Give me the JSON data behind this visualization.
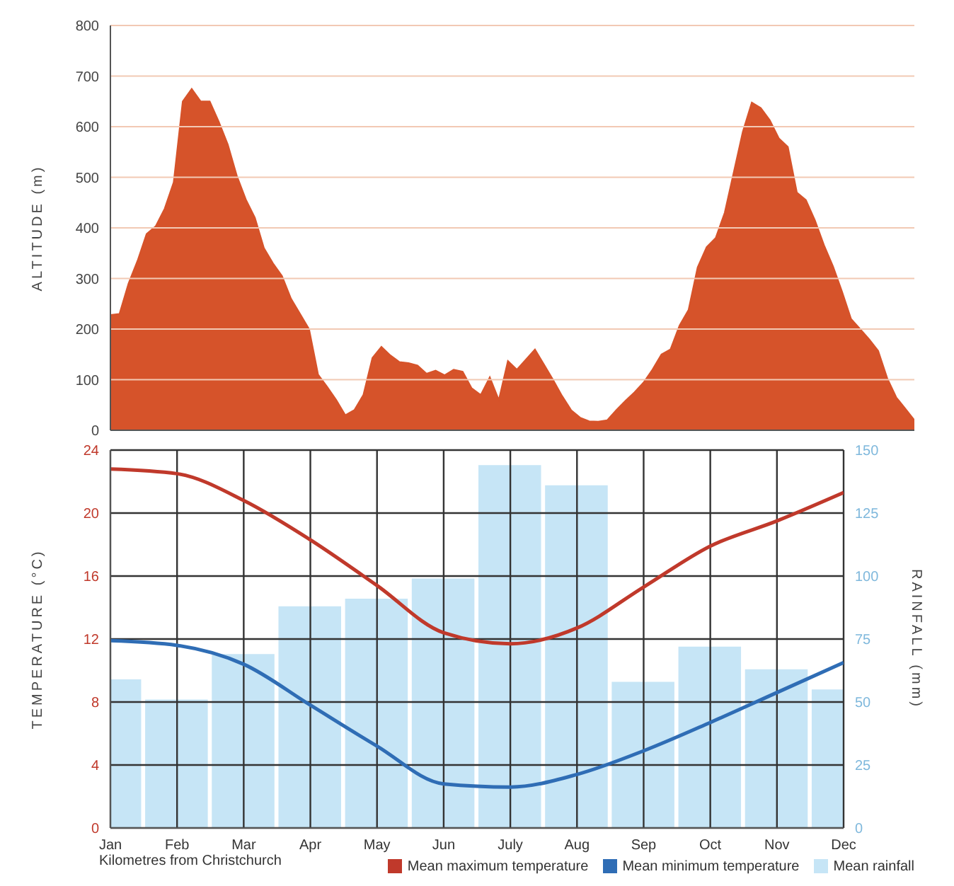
{
  "chart_data": [
    {
      "type": "area",
      "ylabel": "ALTITUDE (m)",
      "categories": [
        null,
        null,
        null,
        null,
        null,
        null,
        null,
        null,
        null,
        null,
        null,
        null,
        null,
        null,
        null,
        null,
        null,
        null,
        null,
        null,
        null,
        null,
        null,
        null,
        null,
        null,
        null,
        null,
        null,
        null,
        null,
        null,
        null,
        null,
        null,
        null,
        null,
        null,
        null,
        null,
        null,
        null,
        null,
        null,
        null,
        null,
        null,
        null,
        null,
        null,
        null,
        null,
        null,
        null,
        null,
        null,
        null,
        null,
        null,
        null,
        null,
        null,
        null,
        null,
        null,
        null,
        null,
        null,
        null,
        null,
        null,
        null,
        null,
        null,
        null,
        null,
        null,
        null,
        null,
        null,
        null,
        null,
        null,
        null,
        null,
        null,
        null,
        null,
        null,
        null
      ],
      "series": [
        {
          "color": "#d6532a",
          "values": [
            228,
            230,
            290,
            335,
            388,
            403,
            438,
            490,
            650,
            675,
            650,
            650,
            610,
            565,
            503,
            456,
            420,
            360,
            330,
            305,
            260,
            230,
            200,
            110,
            86,
            60,
            30,
            40,
            70,
            143,
            165,
            148,
            135,
            133,
            128,
            112,
            118,
            109,
            120,
            116,
            83,
            70,
            105,
            60,
            137,
            120,
            140,
            160,
            130,
            100,
            68,
            40,
            25,
            18,
            17,
            20,
            40,
            58,
            75,
            94,
            120,
            150,
            160,
            207,
            238,
            322,
            362,
            380,
            430,
            510,
            590,
            648,
            637,
            613,
            577,
            560,
            470,
            455,
            415,
            366,
            324,
            274,
            220,
            200,
            180,
            157,
            103,
            65,
            43,
            20
          ]
        }
      ],
      "ylim": [
        0,
        800
      ],
      "yticks": [
        0,
        100,
        200,
        300,
        400,
        500,
        600,
        700,
        800
      ],
      "grid": "y",
      "tick_labels": "y"
    },
    {
      "type": "line",
      "ylabel": "TEMPERATURE (°C)",
      "y2label": "RAINFALL (mm)",
      "categories": [
        "Jan",
        "Feb",
        "Mar",
        "Apr",
        "May",
        "Jun",
        "July",
        "Aug",
        "Sep",
        "Oct",
        "Nov",
        "Dec"
      ],
      "series": [
        {
          "name": "Mean rainfall",
          "type": "bar",
          "axis": "y2",
          "color": "#c6e5f6",
          "values": [
            59,
            51,
            69,
            88,
            91,
            99,
            144,
            136,
            58,
            72,
            63,
            55
          ]
        },
        {
          "name": "Mean maximum temperature",
          "color": "#c0392b",
          "values": [
            22.8,
            22.5,
            20.8,
            18.3,
            15.4,
            12.4,
            11.7,
            12.7,
            15.3,
            17.9,
            19.5,
            21.3
          ]
        },
        {
          "name": "Mean minimum temperature",
          "color": "#2f6db5",
          "values": [
            11.9,
            11.6,
            10.4,
            7.8,
            5.2,
            2.8,
            2.6,
            3.4,
            4.9,
            6.7,
            8.6,
            10.5
          ]
        }
      ],
      "ylim": [
        0,
        24
      ],
      "yticks": [
        0,
        4,
        8,
        12,
        16,
        20,
        24
      ],
      "y2lim": [
        0,
        150
      ],
      "y2ticks": [
        0,
        25,
        50,
        75,
        100,
        125,
        150
      ],
      "grid": true,
      "legend": "bottom right",
      "annotations": [
        "Kilometres from Christchurch"
      ]
    }
  ]
}
